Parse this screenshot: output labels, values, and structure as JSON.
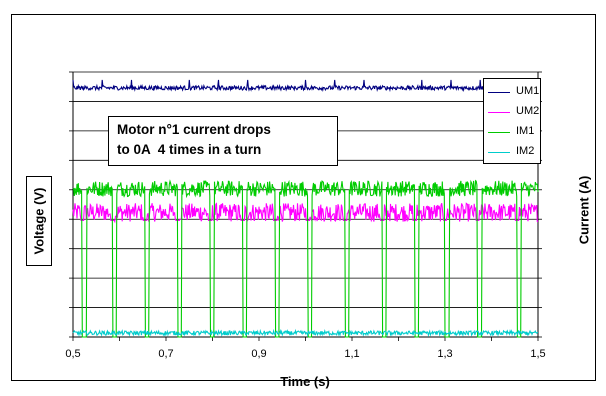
{
  "chart_data": {
    "type": "line",
    "title": "",
    "xlabel": "Time (s)",
    "ylabel": "Voltage (V)",
    "y2label": "Current (A)",
    "xlim": [
      0.5,
      1.5
    ],
    "x_ticks": [
      "0,5",
      "0,7",
      "0,9",
      "1,1",
      "1,3",
      "1,5"
    ],
    "y_ticks_count": 9,
    "grid": true,
    "legend_position": "top-right",
    "annotation": [
      "Motor n°1 current drops",
      "to 0A  4 times in a turn"
    ],
    "series": [
      {
        "name": "UM1",
        "color": "#000080",
        "level": 0.94,
        "noise": 0.008,
        "spike_period": 0.0625,
        "spike_height": 0.03
      },
      {
        "name": "UM2",
        "color": "#ff00ff",
        "level": 0.47,
        "noise": 0.035
      },
      {
        "name": "IM1",
        "color": "#00cc00",
        "level": 0.56,
        "noise": 0.03,
        "drop_level": 0.0,
        "drop_times": [
          0.52,
          0.585,
          0.655,
          0.725,
          0.795,
          0.865,
          0.935,
          1.005,
          1.085,
          1.165,
          1.235,
          1.3,
          1.37,
          1.455
        ]
      },
      {
        "name": "IM2",
        "color": "#00cccc",
        "level": 0.015,
        "noise": 0.008
      }
    ]
  }
}
